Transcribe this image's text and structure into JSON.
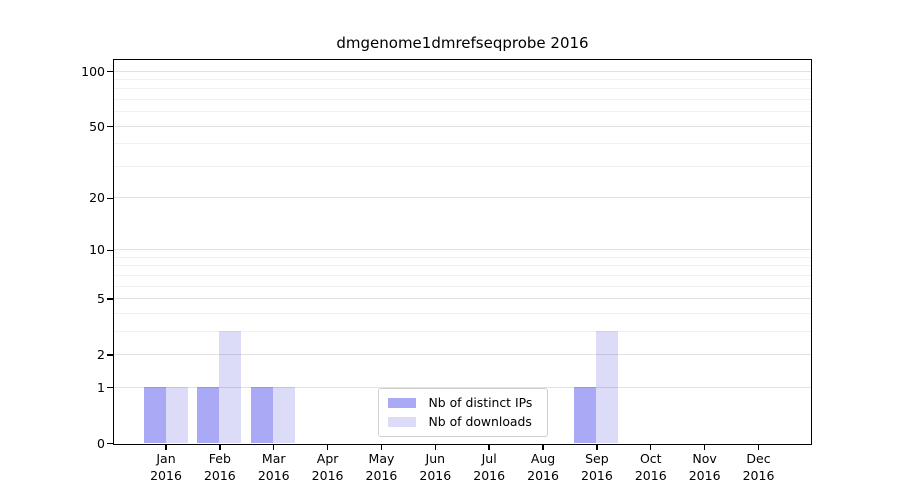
{
  "title": "dmgenome1dmrefseqprobe 2016",
  "chart_data": {
    "type": "bar",
    "title": "dmgenome1dmrefseqprobe 2016",
    "xlabel": "",
    "ylabel": "",
    "months": [
      "Jan",
      "Feb",
      "Mar",
      "Apr",
      "May",
      "Jun",
      "Jul",
      "Aug",
      "Sep",
      "Oct",
      "Nov",
      "Dec"
    ],
    "year": "2016",
    "categories": [
      "Jan 2016",
      "Feb 2016",
      "Mar 2016",
      "Apr 2016",
      "May 2016",
      "Jun 2016",
      "Jul 2016",
      "Aug 2016",
      "Sep 2016",
      "Oct 2016",
      "Nov 2016",
      "Dec 2016"
    ],
    "series": [
      {
        "name": "Nb of distinct IPs",
        "color": "#a9a9f6",
        "values": [
          1,
          1,
          1,
          0,
          0,
          0,
          0,
          0,
          1,
          0,
          0,
          0
        ]
      },
      {
        "name": "Nb of downloads",
        "color": "#dcdcf9",
        "values": [
          1,
          3,
          1,
          0,
          0,
          0,
          0,
          0,
          3,
          0,
          0,
          0
        ]
      }
    ],
    "y_axis": {
      "scale": "log10(1+x)",
      "major_ticks": [
        0,
        1,
        2,
        5,
        10,
        20,
        50,
        100
      ],
      "minor_ticks": [
        3,
        4,
        6,
        7,
        8,
        9,
        30,
        40,
        60,
        70,
        80,
        90
      ],
      "range_top_value": 115
    },
    "grid": true,
    "legend_position": "lower center"
  }
}
